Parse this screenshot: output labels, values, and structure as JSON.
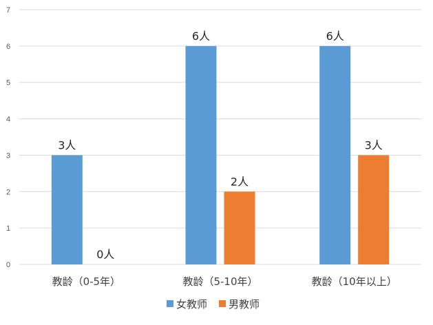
{
  "chart_data": {
    "type": "bar",
    "categories": [
      "教龄（0-5年）",
      "教龄（5-10年）",
      "教龄（10年以上）"
    ],
    "series": [
      {
        "name": "女教师",
        "values": [
          3,
          6,
          6
        ],
        "labels": [
          "3人",
          "6人",
          "6人"
        ],
        "color": "#5B9BD5"
      },
      {
        "name": "男教师",
        "values": [
          0,
          2,
          3
        ],
        "labels": [
          "0人",
          "2人",
          "3人"
        ],
        "color": "#ED7D31"
      }
    ],
    "ylim": [
      0,
      7
    ],
    "yticks": [
      "0",
      "1",
      "2",
      "3",
      "4",
      "5",
      "6",
      "7"
    ],
    "grid": true,
    "legend_position": "bottom"
  }
}
